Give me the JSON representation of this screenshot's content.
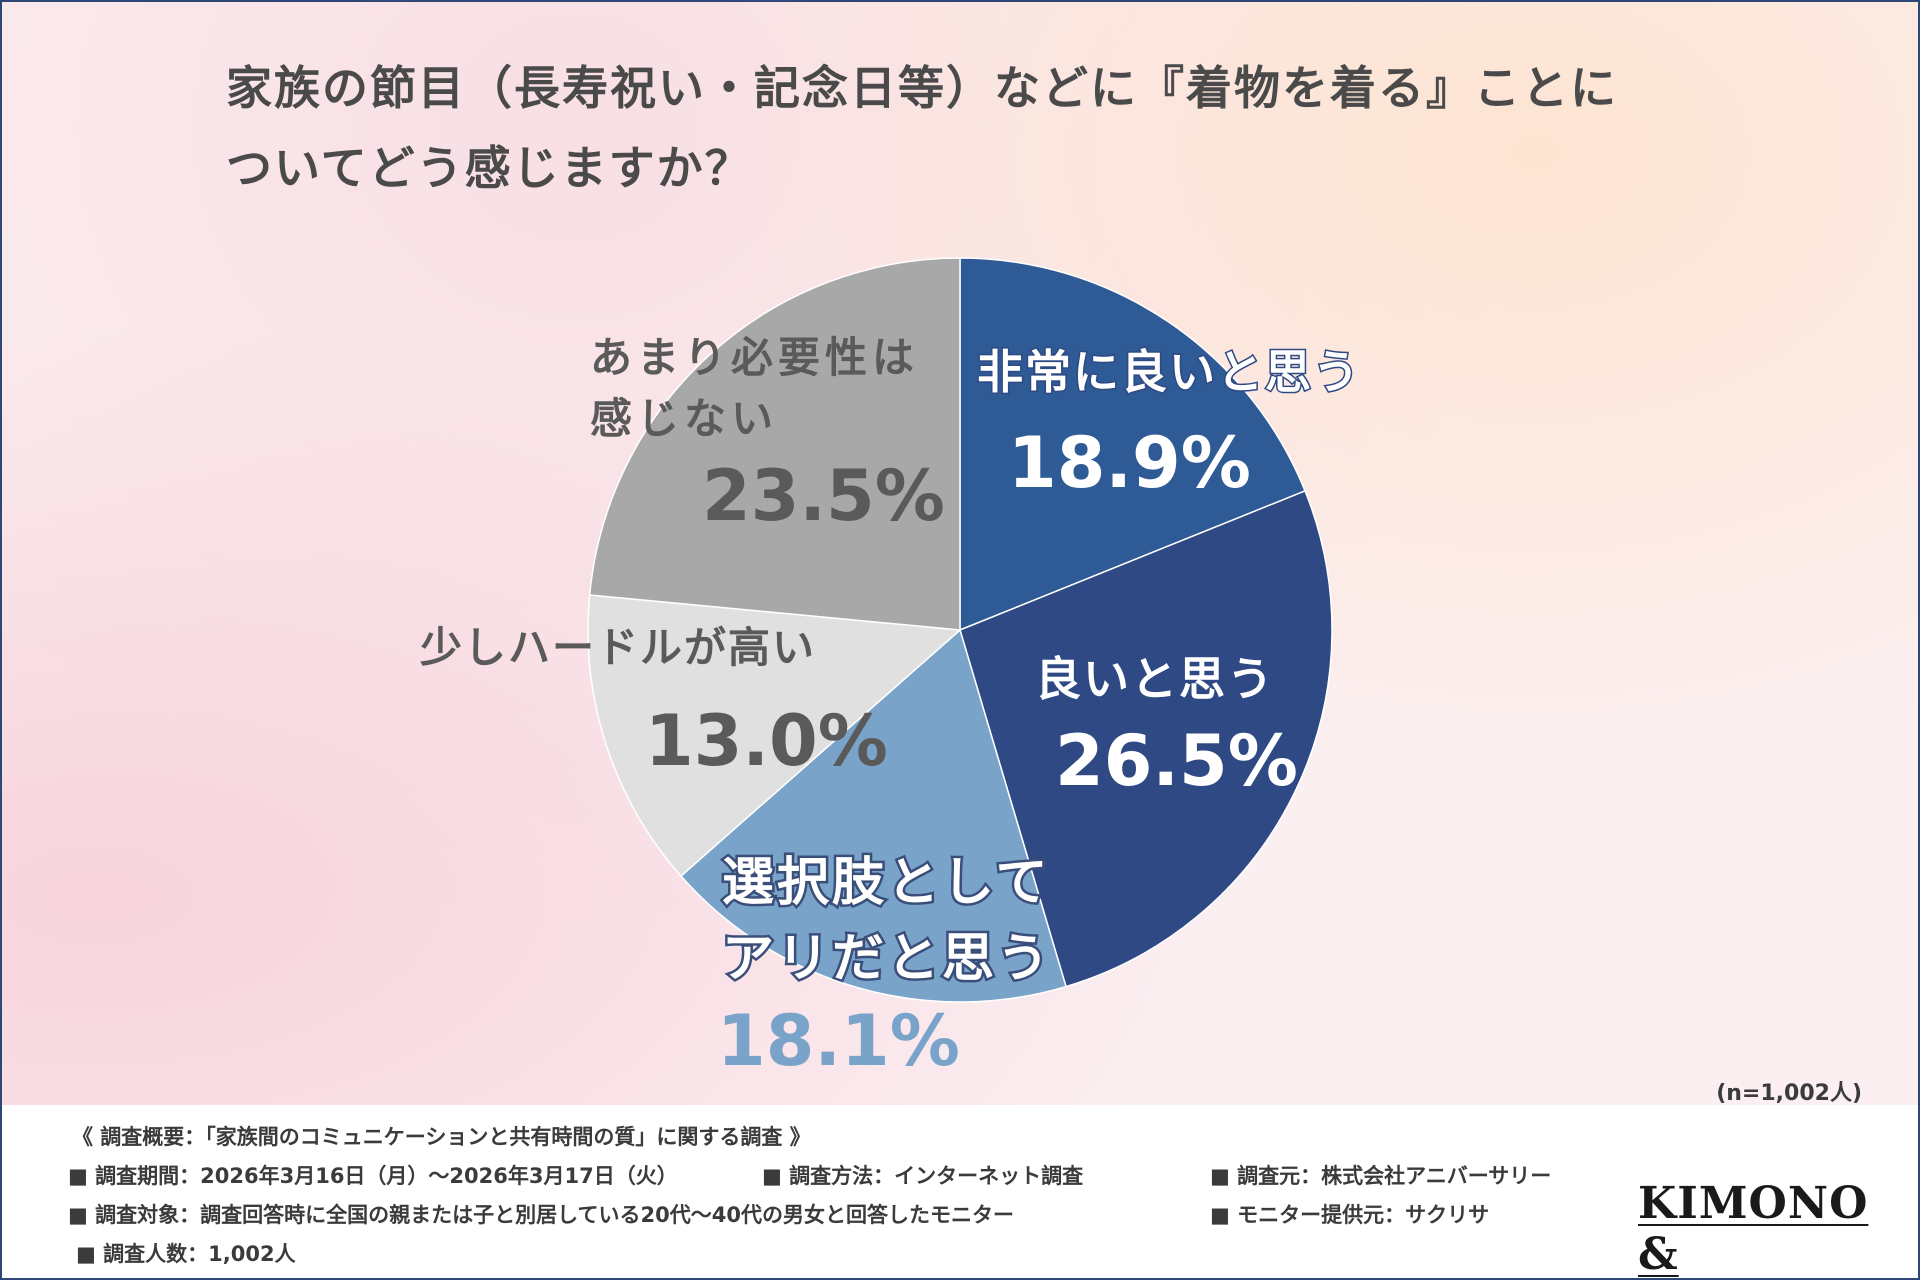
{
  "title": {
    "line1": "家族の節目（長寿祝い・記念日等）などに『着物を着る』ことに",
    "line2": "ついてどう感じますか？"
  },
  "chart_data": {
    "type": "pie",
    "title": "家族の節目（長寿祝い・記念日等）などに『着物を着る』ことについてどう感じますか？",
    "slices": [
      {
        "label": "非常に良いと思う",
        "value": 18.9,
        "display": "18.9%",
        "color": "#2e5a96"
      },
      {
        "label": "良いと思う",
        "value": 26.5,
        "display": "26.5%",
        "color": "#2e4983"
      },
      {
        "label": "選択肢として アリだと思う",
        "value": 18.1,
        "display": "18.1%",
        "color": "#79a3c9"
      },
      {
        "label": "少しハードルが高い",
        "value": 13.0,
        "display": "13.0%",
        "color": "#e0e0e0"
      },
      {
        "label": "あまり必要性は 感じない",
        "value": 23.5,
        "display": "23.5%",
        "color": "#a8a8a8"
      }
    ],
    "sample_size": "(n=1,002人)"
  },
  "labels": {
    "s0": {
      "line1": "非常に良いと思う",
      "pct": "18.9%"
    },
    "s1": {
      "line1": "良いと思う",
      "pct": "26.5%"
    },
    "s2": {
      "line1": "選択肢として",
      "line2": "アリだと思う",
      "pct": "18.1%"
    },
    "s3": {
      "line1": "少しハードルが高い",
      "pct": "13.0%"
    },
    "s4": {
      "line1": "あまり必要性は",
      "line2": "感じない",
      "pct": "23.5%"
    }
  },
  "footer": {
    "heading": "《 調査概要：「家族間のコミュニケーションと共有時間の質」に関する調査 》",
    "period": "■ 調査期間：2026年3月16日（月）〜2026年3月17日（火）",
    "method": "■ 調査方法：インターネット調査",
    "source": "■ 調査元：株式会社アニバーサリー",
    "target": "■ 調査対象：調査回答時に全国の親または子と別居している20代〜40代の男女と回答したモニター",
    "provider": "■ モニター提供元：サクリサ",
    "count": "■ 調査人数：1,002人"
  },
  "logo": "KIMONO &",
  "colors": {
    "frame": "#2d4776",
    "title": "#4a4a4a",
    "dark_text": "#5a5a5a",
    "light_blue_text": "#79a3c9"
  }
}
